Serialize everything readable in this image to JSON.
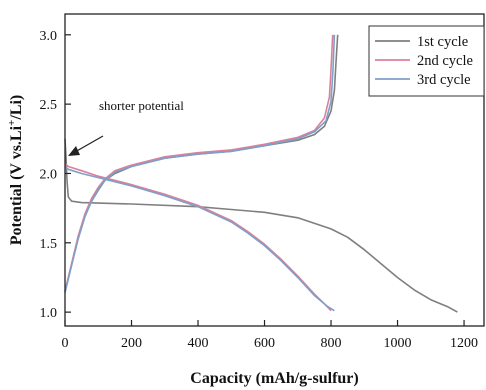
{
  "chart_data": {
    "type": "line",
    "xlabel": "Capacity (mAh/g-sulfur)",
    "ylabel_parts": [
      "Potential (V vs.Li",
      "+",
      "/Li)"
    ],
    "xlim": [
      0,
      1260
    ],
    "ylim": [
      0.9,
      3.15
    ],
    "xticks": [
      0,
      200,
      400,
      600,
      800,
      1000,
      1200
    ],
    "yticks": [
      1.0,
      1.5,
      2.0,
      2.5,
      3.0
    ],
    "grid": false,
    "legend_position": "top-right",
    "annotation": "shorter potential",
    "series": [
      {
        "name": "1st cycle",
        "color": "#7f7f7f",
        "discharge": [
          [
            0,
            2.25
          ],
          [
            3,
            2.12
          ],
          [
            6,
            1.95
          ],
          [
            10,
            1.83
          ],
          [
            20,
            1.8
          ],
          [
            50,
            1.79
          ],
          [
            200,
            1.78
          ],
          [
            400,
            1.76
          ],
          [
            500,
            1.74
          ],
          [
            600,
            1.72
          ],
          [
            700,
            1.68
          ],
          [
            800,
            1.6
          ],
          [
            850,
            1.54
          ],
          [
            900,
            1.45
          ],
          [
            950,
            1.35
          ],
          [
            1000,
            1.25
          ],
          [
            1050,
            1.16
          ],
          [
            1100,
            1.09
          ],
          [
            1150,
            1.04
          ],
          [
            1180,
            1.0
          ]
        ],
        "charge": [
          [
            0,
            1.15
          ],
          [
            20,
            1.35
          ],
          [
            40,
            1.55
          ],
          [
            60,
            1.7
          ],
          [
            80,
            1.8
          ],
          [
            100,
            1.88
          ],
          [
            120,
            1.95
          ],
          [
            150,
            2.0
          ],
          [
            200,
            2.05
          ],
          [
            300,
            2.11
          ],
          [
            400,
            2.14
          ],
          [
            500,
            2.16
          ],
          [
            600,
            2.2
          ],
          [
            700,
            2.24
          ],
          [
            750,
            2.28
          ],
          [
            780,
            2.34
          ],
          [
            800,
            2.45
          ],
          [
            810,
            2.6
          ],
          [
            815,
            2.8
          ],
          [
            820,
            3.0
          ]
        ]
      },
      {
        "name": "2nd cycle",
        "color": "#d9819b",
        "discharge": [
          [
            0,
            2.07
          ],
          [
            10,
            2.05
          ],
          [
            50,
            2.02
          ],
          [
            100,
            1.98
          ],
          [
            200,
            1.92
          ],
          [
            300,
            1.85
          ],
          [
            400,
            1.77
          ],
          [
            500,
            1.66
          ],
          [
            550,
            1.58
          ],
          [
            600,
            1.49
          ],
          [
            650,
            1.38
          ],
          [
            700,
            1.26
          ],
          [
            750,
            1.13
          ],
          [
            780,
            1.06
          ],
          [
            800,
            1.01
          ]
        ],
        "charge": [
          [
            0,
            1.15
          ],
          [
            20,
            1.35
          ],
          [
            40,
            1.55
          ],
          [
            60,
            1.71
          ],
          [
            80,
            1.82
          ],
          [
            100,
            1.9
          ],
          [
            120,
            1.96
          ],
          [
            150,
            2.02
          ],
          [
            200,
            2.06
          ],
          [
            300,
            2.12
          ],
          [
            400,
            2.15
          ],
          [
            500,
            2.17
          ],
          [
            600,
            2.21
          ],
          [
            700,
            2.26
          ],
          [
            750,
            2.31
          ],
          [
            780,
            2.4
          ],
          [
            795,
            2.55
          ],
          [
            800,
            2.75
          ],
          [
            805,
            3.0
          ]
        ]
      },
      {
        "name": "3rd cycle",
        "color": "#7f9fc8",
        "discharge": [
          [
            0,
            2.05
          ],
          [
            10,
            2.03
          ],
          [
            50,
            2.0
          ],
          [
            100,
            1.97
          ],
          [
            200,
            1.91
          ],
          [
            300,
            1.84
          ],
          [
            400,
            1.76
          ],
          [
            500,
            1.65
          ],
          [
            550,
            1.57
          ],
          [
            600,
            1.48
          ],
          [
            650,
            1.37
          ],
          [
            700,
            1.25
          ],
          [
            750,
            1.12
          ],
          [
            790,
            1.04
          ],
          [
            810,
            1.01
          ]
        ],
        "charge": [
          [
            0,
            1.14
          ],
          [
            20,
            1.34
          ],
          [
            40,
            1.53
          ],
          [
            60,
            1.69
          ],
          [
            80,
            1.8
          ],
          [
            100,
            1.89
          ],
          [
            120,
            1.95
          ],
          [
            150,
            2.01
          ],
          [
            200,
            2.05
          ],
          [
            300,
            2.11
          ],
          [
            400,
            2.14
          ],
          [
            500,
            2.16
          ],
          [
            600,
            2.2
          ],
          [
            700,
            2.25
          ],
          [
            750,
            2.3
          ],
          [
            785,
            2.38
          ],
          [
            800,
            2.52
          ],
          [
            806,
            2.75
          ],
          [
            810,
            3.0
          ]
        ]
      }
    ]
  }
}
